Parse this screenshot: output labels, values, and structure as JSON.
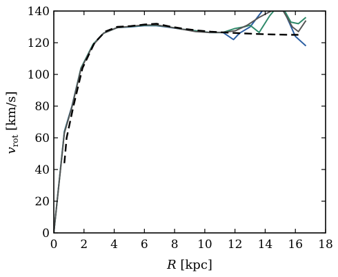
{
  "chart_data": {
    "type": "line",
    "xlabel": {
      "var": "R",
      "unit": " [kpc]"
    },
    "ylabel": {
      "var": "v",
      "sub": "rot",
      "unit": " [km/s]"
    },
    "xlim": [
      0,
      18
    ],
    "ylim": [
      0,
      140
    ],
    "xticks": [
      0,
      2,
      4,
      6,
      8,
      10,
      12,
      14,
      16,
      18
    ],
    "yticks": [
      0,
      20,
      40,
      60,
      80,
      100,
      120,
      140
    ],
    "xtick_labels": [
      "0",
      "2",
      "4",
      "6",
      "8",
      "10",
      "12",
      "14",
      "16",
      "18"
    ],
    "ytick_labels": [
      "0",
      "20",
      "40",
      "60",
      "80",
      "100",
      "120",
      "140"
    ],
    "grid": false,
    "legend": "none",
    "series": [
      {
        "color": "#2b5fa3",
        "style": "solid",
        "x": [
          0,
          0.7,
          1.2,
          1.8,
          2.6,
          3.3,
          4.2,
          5.1,
          6.0,
          6.8,
          7.6,
          8.5,
          9.4,
          10.3,
          11.2,
          11.9,
          12.3,
          13.0,
          13.8,
          14.5,
          15.3,
          16.0,
          16.7
        ],
        "y": [
          0,
          64,
          80,
          104,
          119,
          126,
          129.5,
          130,
          130.8,
          130.8,
          129.8,
          128.5,
          127.5,
          126.5,
          126.5,
          122,
          126,
          130,
          140,
          146,
          139,
          124,
          118
        ]
      },
      {
        "color": "#2f8a6a",
        "style": "solid",
        "x": [
          0,
          0.7,
          1.2,
          1.8,
          2.6,
          3.3,
          4.2,
          5.1,
          6.0,
          6.8,
          7.6,
          8.5,
          9.4,
          10.3,
          11.2,
          12.0,
          12.6,
          13.0,
          13.6,
          14.3,
          15.0,
          15.7,
          16.2,
          16.7
        ],
        "y": [
          0,
          63.5,
          79.5,
          104,
          119,
          126,
          129.5,
          130.2,
          131,
          131,
          130,
          128.5,
          127.5,
          126.5,
          126.5,
          129,
          130,
          131,
          126.5,
          137,
          145,
          133,
          132,
          136
        ]
      },
      {
        "color": "#555555",
        "style": "solid",
        "x": [
          0,
          0.7,
          1.2,
          1.8,
          2.6,
          3.3,
          4.2,
          5.1,
          6.0,
          6.8,
          7.6,
          8.5,
          9.4,
          10.3,
          11.2,
          12.0,
          12.8,
          13.6,
          14.4,
          15.2,
          15.8,
          16.2,
          16.7
        ],
        "y": [
          0,
          63,
          79.5,
          103.5,
          118.5,
          126,
          129.5,
          130.3,
          131.2,
          131.2,
          130,
          128.5,
          127,
          126.5,
          126.5,
          127.5,
          131,
          136,
          140,
          140,
          130,
          127,
          134
        ]
      },
      {
        "color": "#000000",
        "style": "dashed",
        "x": [
          0.7,
          0.85,
          1.3,
          1.9,
          2.7,
          3.4,
          4.2,
          5.1,
          6.0,
          6.8,
          7.7,
          8.6,
          9.5,
          10.4,
          11.3,
          12.3,
          13.5,
          14.5,
          15.5,
          16.2
        ],
        "y": [
          44,
          60,
          80,
          104,
          120,
          127,
          130,
          130.5,
          131.5,
          132,
          130.2,
          128.8,
          127.8,
          127,
          126.5,
          126,
          125.5,
          125.2,
          125,
          125
        ]
      }
    ]
  }
}
